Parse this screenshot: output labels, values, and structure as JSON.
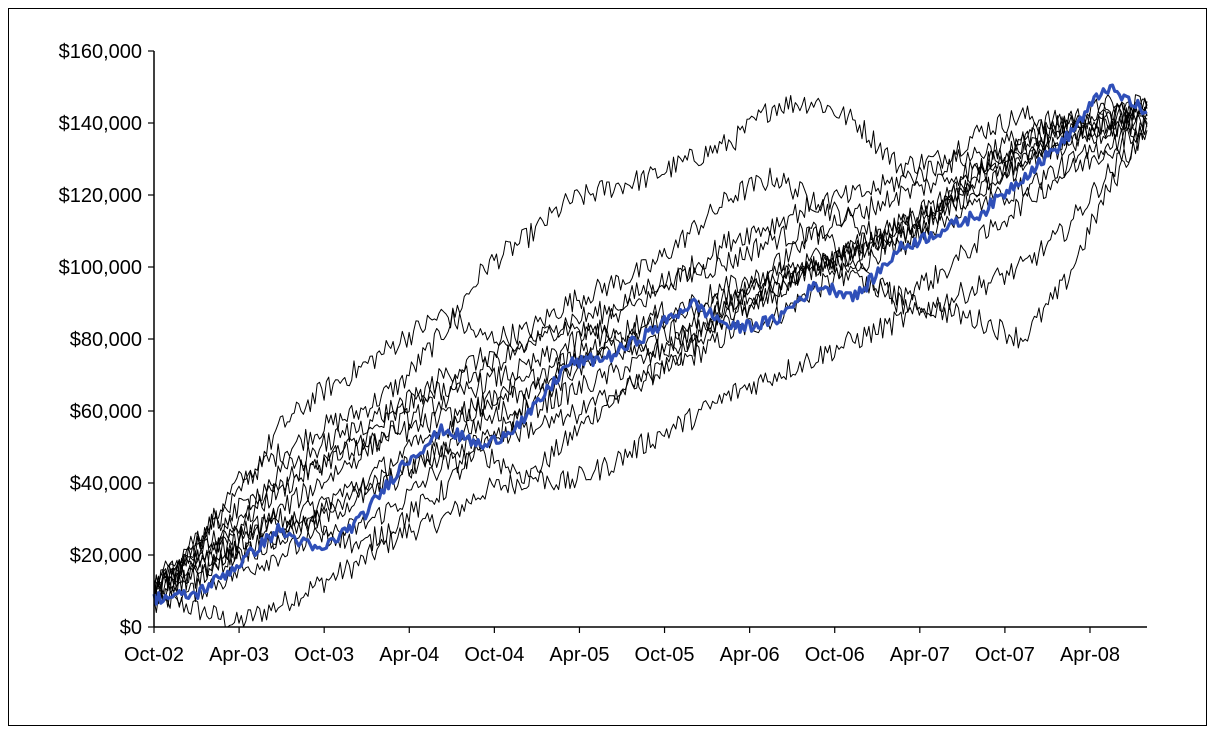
{
  "chart_data": {
    "type": "line",
    "title": "",
    "xlabel": "",
    "ylabel": "",
    "x_tick_labels": [
      "Oct-02",
      "Apr-03",
      "Oct-03",
      "Apr-04",
      "Oct-04",
      "Apr-05",
      "Oct-05",
      "Apr-06",
      "Oct-06",
      "Apr-07",
      "Oct-07",
      "Apr-08"
    ],
    "y_tick_labels": [
      "$0",
      "$20,000",
      "$40,000",
      "$60,000",
      "$80,000",
      "$100,000",
      "$120,000",
      "$140,000",
      "$160,000"
    ],
    "xlim": [
      "Oct-02",
      "Jun-08"
    ],
    "ylim": [
      0,
      160000
    ],
    "grid": false,
    "legend": "none",
    "highlight_color": "#2f4fb8",
    "line_color": "#000000",
    "series": [
      {
        "highlight": true,
        "values": [
          8000,
          9000,
          17000,
          27000,
          21000,
          30000,
          45000,
          55000,
          50000,
          58000,
          73000,
          75000,
          82000,
          90000,
          83000,
          85000,
          95000,
          92000,
          105000,
          110000,
          115000,
          125000,
          135000,
          150000,
          143000
        ]
      },
      {
        "highlight": false,
        "values": [
          9000,
          5000,
          1000,
          6000,
          12000,
          18000,
          26000,
          30000,
          38000,
          41000,
          52000,
          63000,
          70000,
          75000,
          82000,
          86000,
          94000,
          100000,
          108000,
          115000,
          123000,
          130000,
          136000,
          142000,
          145000
        ]
      },
      {
        "highlight": false,
        "values": [
          10000,
          22000,
          40000,
          48000,
          55000,
          60000,
          68000,
          82000,
          100000,
          108000,
          118000,
          122000,
          125000,
          130000,
          135000,
          145000,
          146000,
          140000,
          128000,
          130000,
          138000,
          142000,
          140000,
          145000,
          143000
        ]
      },
      {
        "highlight": false,
        "values": [
          12000,
          25000,
          35000,
          55000,
          65000,
          72000,
          80000,
          87000,
          80000,
          82000,
          90000,
          95000,
          100000,
          110000,
          120000,
          125000,
          118000,
          112000,
          105000,
          115000,
          128000,
          135000,
          140000,
          138000,
          142000
        ]
      },
      {
        "highlight": false,
        "values": [
          9000,
          18000,
          28000,
          38000,
          45000,
          52000,
          60000,
          70000,
          75000,
          78000,
          85000,
          88000,
          95000,
          98000,
          102000,
          108000,
          110000,
          100000,
          90000,
          88000,
          85000,
          80000,
          95000,
          120000,
          140000
        ]
      },
      {
        "highlight": false,
        "values": [
          7000,
          10000,
          15000,
          20000,
          25000,
          28000,
          35000,
          45000,
          48000,
          42000,
          40000,
          45000,
          52000,
          58000,
          65000,
          70000,
          75000,
          80000,
          85000,
          90000,
          95000,
          100000,
          110000,
          125000,
          138000
        ]
      },
      {
        "highlight": false,
        "values": [
          11000,
          20000,
          26000,
          30000,
          28000,
          22000,
          30000,
          38000,
          52000,
          60000,
          65000,
          70000,
          75000,
          80000,
          87000,
          92000,
          100000,
          104000,
          110000,
          118000,
          126000,
          132000,
          138000,
          141000,
          144000
        ]
      },
      {
        "highlight": false,
        "values": [
          8000,
          15000,
          22000,
          32000,
          40000,
          48000,
          57000,
          63000,
          68000,
          72000,
          78000,
          85000,
          92000,
          100000,
          108000,
          112000,
          118000,
          120000,
          124000,
          128000,
          132000,
          136000,
          140000,
          143000,
          146000
        ]
      },
      {
        "highlight": false,
        "values": [
          10000,
          14000,
          20000,
          24000,
          30000,
          36000,
          42000,
          50000,
          58000,
          62000,
          70000,
          76000,
          80000,
          84000,
          90000,
          95000,
          100000,
          106000,
          112000,
          118000,
          125000,
          130000,
          134000,
          138000,
          141000
        ]
      },
      {
        "highlight": false,
        "values": [
          9000,
          24000,
          32000,
          42000,
          50000,
          56000,
          62000,
          66000,
          72000,
          78000,
          84000,
          80000,
          76000,
          82000,
          90000,
          100000,
          110000,
          115000,
          120000,
          124000,
          128000,
          135000,
          137000,
          140000,
          142000
        ]
      },
      {
        "highlight": false,
        "values": [
          12000,
          18000,
          24000,
          28000,
          34000,
          40000,
          48000,
          55000,
          62000,
          68000,
          74000,
          80000,
          86000,
          90000,
          95000,
          98000,
          102000,
          96000,
          92000,
          98000,
          108000,
          118000,
          126000,
          132000,
          140000
        ]
      },
      {
        "highlight": false,
        "values": [
          8000,
          16000,
          20000,
          26000,
          32000,
          38000,
          44000,
          48000,
          52000,
          55000,
          58000,
          64000,
          70000,
          78000,
          86000,
          94000,
          100000,
          106000,
          112000,
          116000,
          122000,
          128000,
          134000,
          140000,
          145000
        ]
      },
      {
        "highlight": false,
        "values": [
          10000,
          20000,
          30000,
          40000,
          46000,
          50000,
          54000,
          58000,
          62000,
          66000,
          72000,
          78000,
          84000,
          88000,
          92000,
          96000,
          100000,
          104000,
          108000,
          112000,
          118000,
          122000,
          128000,
          134000,
          139000
        ]
      }
    ]
  }
}
